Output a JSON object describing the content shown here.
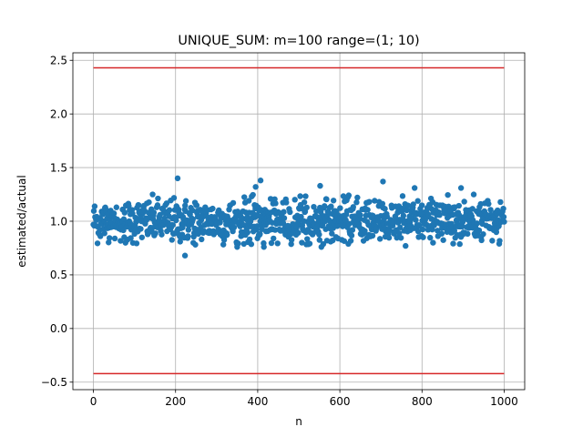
{
  "chart_data": {
    "type": "scatter",
    "title": "UNIQUE_SUM: m=100 range=(1; 10)",
    "xlabel": "n",
    "ylabel": "estimated/actual",
    "xlim": [
      -50,
      1050
    ],
    "ylim": [
      -0.57,
      2.57
    ],
    "xticks": [
      0,
      200,
      400,
      600,
      800,
      1000
    ],
    "xtick_labels": [
      "0",
      "200",
      "400",
      "600",
      "800",
      "1000"
    ],
    "yticks": [
      -0.5,
      0.0,
      0.5,
      1.0,
      1.5,
      2.0,
      2.5
    ],
    "ytick_labels": [
      "−0.5",
      "0.0",
      "0.5",
      "1.0",
      "1.5",
      "2.0",
      "2.5"
    ],
    "grid": true,
    "legend": "none",
    "colors": {
      "points": "#1f77b4",
      "bounds": "#d62728",
      "grid": "#b0b0b0"
    },
    "reference_lines": [
      {
        "x": [
          0,
          1000
        ],
        "y": [
          2.43,
          2.43
        ]
      },
      {
        "x": [
          0,
          1000
        ],
        "y": [
          -0.42,
          -0.42
        ]
      }
    ],
    "series": [
      {
        "n_points": 1000,
        "x_range": [
          0,
          1000
        ],
        "center": 1.0,
        "typical_band": [
          0.78,
          1.25
        ],
        "notable_points": [
          {
            "x": 205,
            "y": 1.4
          },
          {
            "x": 223,
            "y": 0.68
          },
          {
            "x": 407,
            "y": 1.38
          },
          {
            "x": 705,
            "y": 1.37
          },
          {
            "x": 395,
            "y": 1.32
          },
          {
            "x": 552,
            "y": 1.33
          },
          {
            "x": 782,
            "y": 1.31
          },
          {
            "x": 895,
            "y": 1.31
          },
          {
            "x": 555,
            "y": 0.76
          },
          {
            "x": 350,
            "y": 0.76
          },
          {
            "x": 415,
            "y": 0.76
          },
          {
            "x": 760,
            "y": 0.77
          }
        ]
      }
    ]
  }
}
